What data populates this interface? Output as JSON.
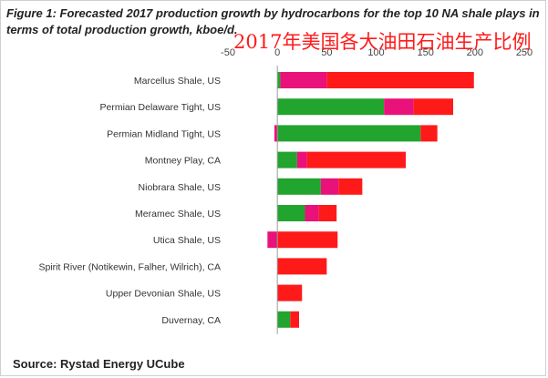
{
  "title": "Figure 1: Forecasted 2017 production growth by hydrocarbons for the top 10 NA shale plays in terms of total production growth, kboe/d.",
  "overlay_text": "2017年美国各大油田石油生产比例",
  "source": "Source: Rystad Energy UCube",
  "colors": {
    "segment_1": "#22a52e",
    "segment_2": "#e8127a",
    "segment_3": "#ff1a1a"
  },
  "chart_data": {
    "type": "bar",
    "orientation": "horizontal",
    "stacked": true,
    "categories": [
      "Marcellus Shale, US",
      "Permian Delaware Tight, US",
      "Permian Midland Tight, US",
      "Montney Play, CA",
      "Niobrara Shale, US",
      "Meramec Shale, US",
      "Utica Shale, US",
      "Spirit River (Notikewin, Falher, Wilrich), CA",
      "Upper Devonian Shale, US",
      "Duvernay, CA"
    ],
    "series": [
      {
        "color": "#22a52e",
        "values": [
          3,
          108,
          145,
          20,
          44,
          28,
          0,
          0,
          0,
          13
        ]
      },
      {
        "color": "#e8127a",
        "values": [
          47,
          30,
          -3,
          10,
          18,
          14,
          -10,
          0,
          0,
          0
        ]
      },
      {
        "color": "#ff1a1a",
        "values": [
          149,
          40,
          17,
          100,
          24,
          18,
          61,
          50,
          25,
          9
        ]
      }
    ],
    "xlim": [
      -50,
      250
    ],
    "xticks": [
      "-50",
      "0",
      "50",
      "100",
      "150",
      "200",
      "250"
    ],
    "grid": false,
    "xaxis_position": "top"
  }
}
